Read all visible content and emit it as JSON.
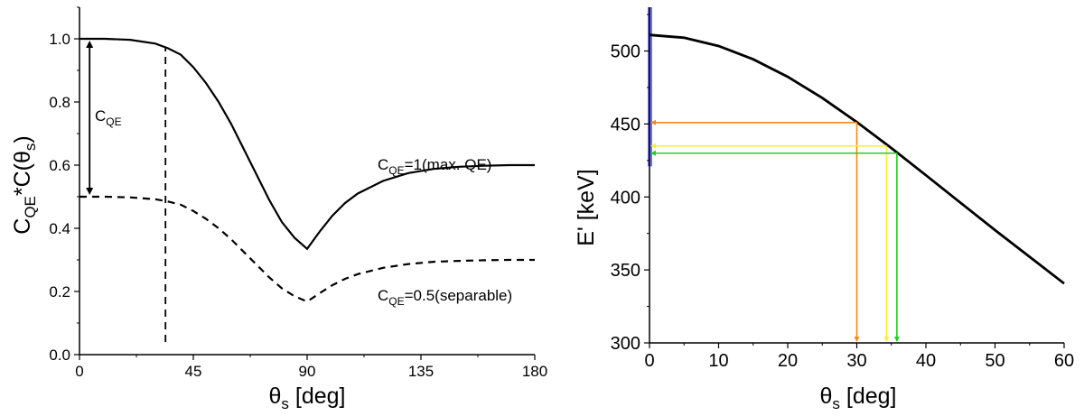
{
  "chart_data": [
    {
      "type": "line",
      "xlabel_main": "θ",
      "xlabel_sub": "s",
      "xlabel_suffix": " [deg]",
      "ylabel_main": "C",
      "ylabel_sub": "QE",
      "ylabel_mid": "*C(θ",
      "ylabel_sub2": "s",
      "ylabel_end": ")",
      "xlim": [
        0,
        180
      ],
      "ylim": [
        0,
        1.1
      ],
      "xticks": [
        "0",
        "45",
        "90",
        "135",
        "180"
      ],
      "yticks": [
        "0.0",
        "0.2",
        "0.4",
        "0.6",
        "0.8",
        "1.0"
      ],
      "series": [
        {
          "label_main": "C",
          "label_sub": "QE",
          "label_rest": "=1(max. QE)",
          "style": "solid",
          "x": [
            0,
            10,
            20,
            30,
            35,
            40,
            45,
            50,
            55,
            60,
            65,
            70,
            75,
            80,
            85,
            90,
            95,
            100,
            105,
            110,
            120,
            130,
            140,
            150,
            160,
            170,
            180
          ],
          "y": [
            1.0,
            1.0,
            0.997,
            0.985,
            0.97,
            0.95,
            0.91,
            0.86,
            0.8,
            0.73,
            0.65,
            0.57,
            0.49,
            0.42,
            0.37,
            0.335,
            0.39,
            0.44,
            0.48,
            0.51,
            0.55,
            0.575,
            0.588,
            0.595,
            0.598,
            0.6,
            0.6
          ]
        },
        {
          "label_main": "C",
          "label_sub": "QE",
          "label_rest": "=0.5(separable)",
          "style": "dashed",
          "x": [
            0,
            10,
            20,
            30,
            35,
            40,
            45,
            50,
            55,
            60,
            65,
            70,
            75,
            80,
            85,
            90,
            95,
            100,
            105,
            110,
            120,
            130,
            140,
            150,
            160,
            170,
            180
          ],
          "y": [
            0.5,
            0.5,
            0.498,
            0.492,
            0.485,
            0.475,
            0.455,
            0.43,
            0.4,
            0.365,
            0.325,
            0.285,
            0.245,
            0.21,
            0.185,
            0.168,
            0.195,
            0.22,
            0.24,
            0.255,
            0.275,
            0.287,
            0.294,
            0.297,
            0.299,
            0.3,
            0.3
          ]
        }
      ],
      "annotations": {
        "arrow_label_main": "C",
        "arrow_label_sub": "QE",
        "arrow_x": 4,
        "arrow_y": [
          0.5,
          1.0
        ],
        "vline_x": 34,
        "vline_y": [
          0.04,
          0.975
        ]
      }
    },
    {
      "type": "line",
      "xlabel_main": "θ",
      "xlabel_sub": "s",
      "xlabel_suffix": " [deg]",
      "ylabel": "E' [keV]",
      "xlim": [
        0,
        60
      ],
      "ylim": [
        300,
        530
      ],
      "xticks": [
        "0",
        "10",
        "20",
        "30",
        "40",
        "50",
        "60"
      ],
      "yticks": [
        "300",
        "350",
        "400",
        "450",
        "500"
      ],
      "series": [
        {
          "style": "solid",
          "color": "#000000",
          "x": [
            0,
            5,
            10,
            15,
            20,
            25,
            30,
            35,
            40,
            45,
            50,
            55,
            60
          ],
          "y": [
            511,
            509.1,
            503.4,
            494.3,
            482.3,
            467.8,
            451.3,
            433.5,
            414.9,
            396.0,
            377.3,
            359.0,
            340.7
          ]
        }
      ],
      "markers": [
        {
          "x": 30,
          "y": 451,
          "color": "#f08a24"
        },
        {
          "x": 34.3,
          "y": 435,
          "color": "#f2f230"
        },
        {
          "x": 35.8,
          "y": 430,
          "color": "#22d022"
        }
      ],
      "highlight_color": "#5a5ae6"
    }
  ]
}
